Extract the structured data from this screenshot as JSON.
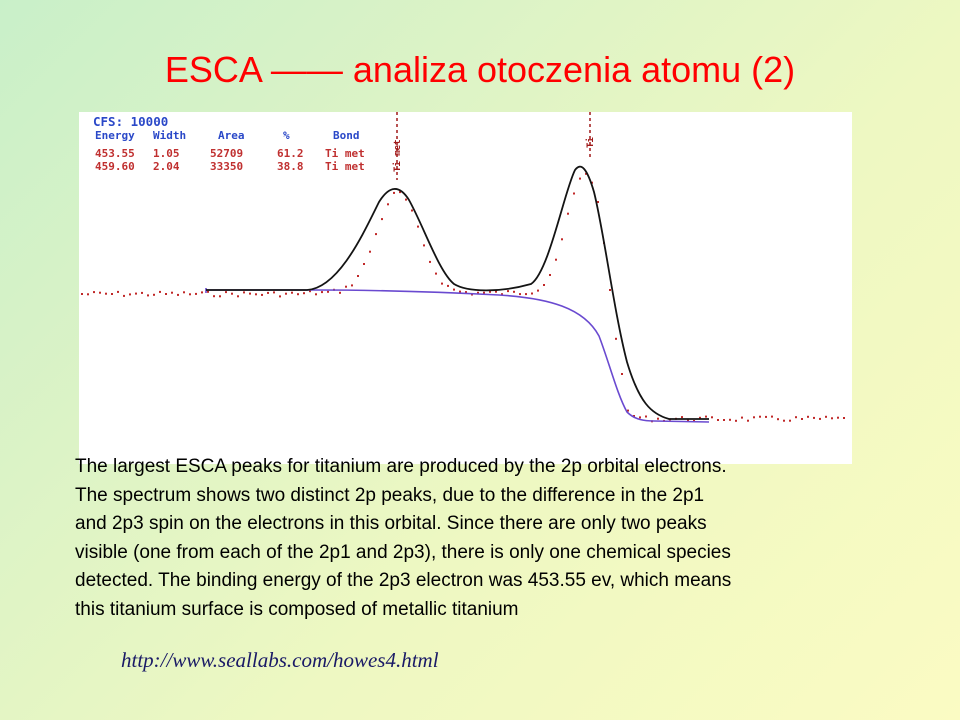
{
  "slide": {
    "title": "ESCA —— analiza otoczenia atomu (2)",
    "colors": {
      "title": "#ff0000",
      "body_text": "#000000",
      "link": "#1a1a66",
      "background_start": "#c9f0c9",
      "background_end": "#fbfbc3"
    }
  },
  "spectrum": {
    "cfs_label": "CFS: 10000",
    "table": {
      "headers": [
        "Energy",
        "Width",
        "Area",
        "%",
        "Bond"
      ],
      "rows": [
        [
          "453.55",
          "1.05",
          "52709",
          "61.2",
          "Ti met"
        ],
        [
          "459.60",
          "2.04",
          "33350",
          "38.8",
          "Ti met"
        ]
      ]
    },
    "peak_markers": [
      "Ti met",
      "Ti"
    ],
    "colors": {
      "fit_curve": "#141414",
      "background_curve": "#6a4ad0",
      "data_points": "#c02828",
      "table_values": "#c03030",
      "table_headers": "#2a48c8"
    }
  },
  "body": {
    "lines": [
      "The largest ESCA peaks for titanium are produced by the 2p orbital electrons.",
      "The spectrum shows two distinct 2p peaks, due to the difference in the 2p1",
      "and 2p3 spin on the electrons in this orbital. Since there are only two peaks",
      "visible (one from each of the 2p1 and 2p3), there is only one chemical species",
      "detected. The binding energy of the 2p3 electron was 453.55 ev, which means",
      "this titanium surface is composed of metallic titanium"
    ]
  },
  "source": {
    "url_text": "http://www.seallabs.com/howes4.html"
  }
}
